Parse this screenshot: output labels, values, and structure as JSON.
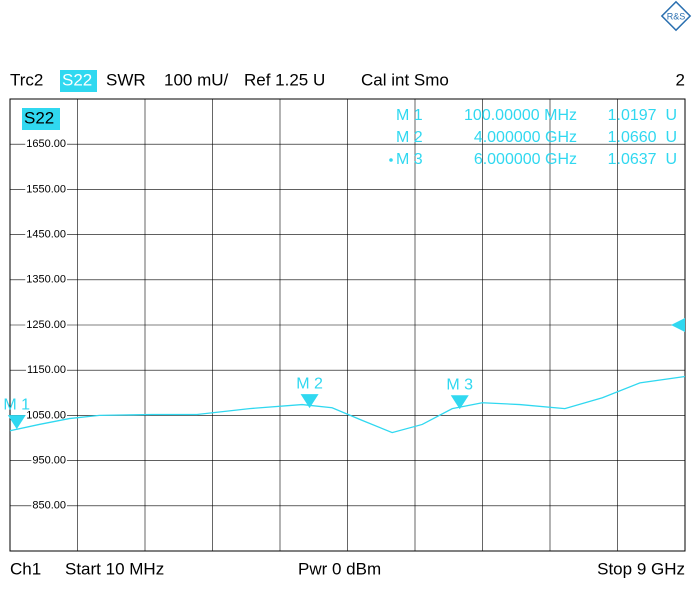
{
  "chart_data": {
    "type": "line",
    "header": {
      "channel_info": "SWR",
      "scale": "100 mU/",
      "ref": "Ref 1.25 U",
      "cal": "Cal int Smo",
      "window": "2",
      "param": "S22"
    },
    "footer": {
      "channel": "Ch1",
      "start": "Start  10 MHz",
      "power": "Pwr  0 dBm",
      "stop": "Stop  9 GHz"
    },
    "xlim": [
      10,
      9000
    ],
    "xdivisions": 10,
    "ylim": [
      750,
      1750
    ],
    "yticks": [
      {
        "value": 850,
        "label": "850.00"
      },
      {
        "value": 950,
        "label": "950.00"
      },
      {
        "value": 1050,
        "label": "1050.00"
      },
      {
        "value": 1150,
        "label": "1150.00"
      },
      {
        "value": 1250,
        "label": "1250.00"
      },
      {
        "value": 1350,
        "label": "1350.00"
      },
      {
        "value": 1450,
        "label": "1450.00"
      },
      {
        "value": 1550,
        "label": "1550.00"
      },
      {
        "value": 1650,
        "label": "1650.00"
      }
    ],
    "grid": true,
    "ref_value": 1250,
    "series": [
      {
        "name": "Trc2",
        "color": "#30d8f0",
        "x": [
          10,
          400,
          800,
          1200,
          1900,
          2500,
          3200,
          3900,
          4300,
          4700,
          5100,
          5500,
          5900,
          6300,
          6800,
          7400,
          7900,
          8400,
          9000
        ],
        "values": [
          1016,
          1030,
          1043,
          1050,
          1052,
          1052,
          1065,
          1074,
          1067,
          1039,
          1012,
          1030,
          1065,
          1078,
          1074,
          1065,
          1089,
          1122,
          1136
        ]
      }
    ],
    "markers": [
      {
        "label": "M 1",
        "x": 100,
        "x_label": "100.00000 MHz",
        "value": 1019.7,
        "value_label": "1.0197  U"
      },
      {
        "label": "M 2",
        "x": 4000,
        "x_label": "4.000000 GHz",
        "value": 1066,
        "value_label": "1.0660  U"
      },
      {
        "label": "M 3",
        "x": 6000,
        "x_label": "6.000000 GHz",
        "value": 1063.7,
        "value_label": "1.0637  U"
      }
    ],
    "active_marker": 2
  }
}
